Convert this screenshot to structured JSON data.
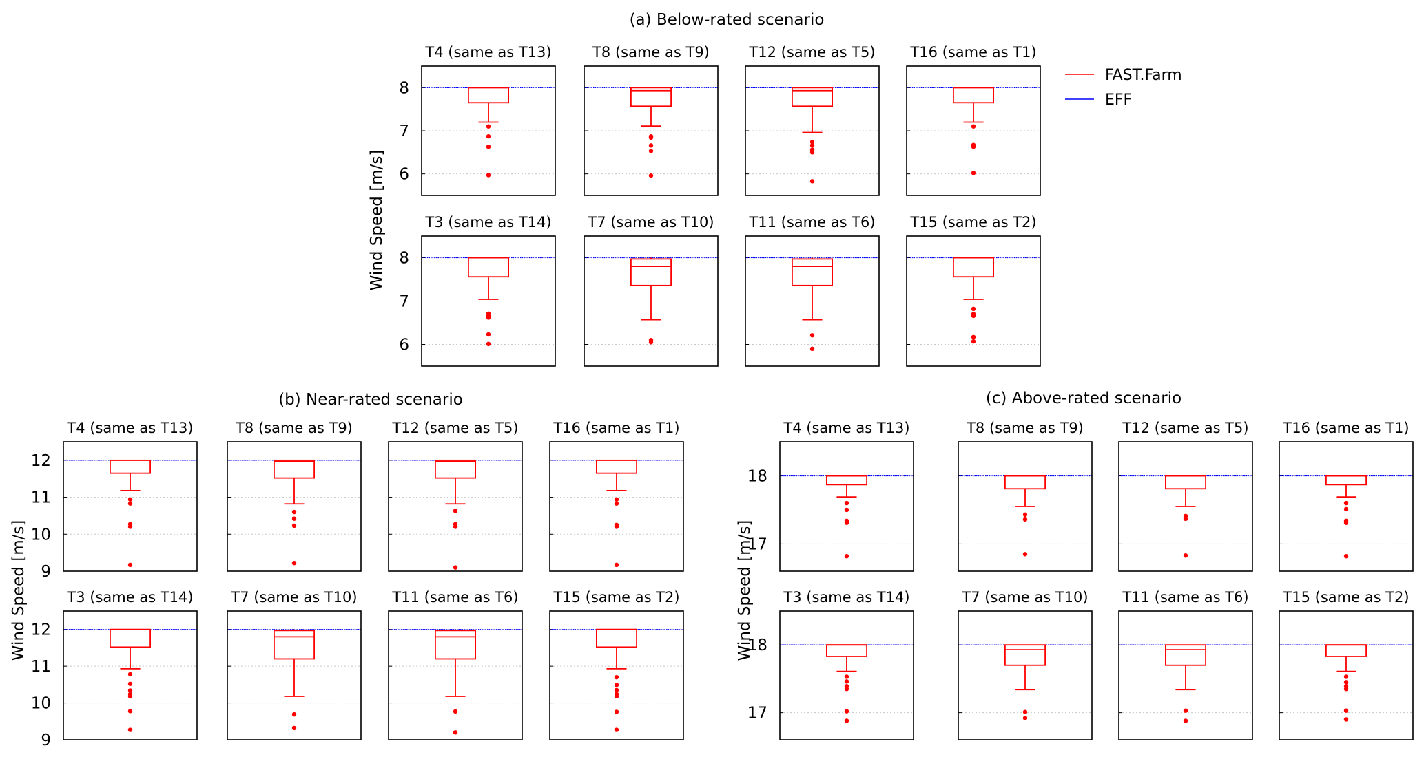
{
  "legend": {
    "items": [
      {
        "label": "FAST.Farm",
        "color": "#ff0000"
      },
      {
        "label": "EFF",
        "color": "#0000ff"
      }
    ]
  },
  "chart_data": [
    {
      "type": "box",
      "title": "(a) Below-rated scenario",
      "ylabel": "Wind Speed [m/s]",
      "ylim": [
        5.5,
        8.5
      ],
      "yticks": [
        6,
        7,
        8
      ],
      "grid": "horizontal dotted",
      "eff_value": 8,
      "panels": [
        {
          "title": "T4 (same as T13)",
          "q1": 7.65,
          "median": 8.0,
          "q3": 8.0,
          "whisker_low": 7.2,
          "whisker_high": 8.0,
          "outliers": [
            7.1,
            6.87,
            6.63,
            5.97
          ]
        },
        {
          "title": "T8 (same as T9)",
          "q1": 7.57,
          "median": 7.93,
          "q3": 8.0,
          "whisker_low": 7.11,
          "whisker_high": 8.0,
          "outliers": [
            6.87,
            6.84,
            6.66,
            6.53,
            5.96
          ]
        },
        {
          "title": "T12 (same as T5)",
          "q1": 7.57,
          "median": 7.93,
          "q3": 8.0,
          "whisker_low": 6.96,
          "whisker_high": 8.0,
          "outliers": [
            6.74,
            6.66,
            6.56,
            6.5,
            5.83
          ]
        },
        {
          "title": "T16 (same as T1)",
          "q1": 7.65,
          "median": 8.0,
          "q3": 8.0,
          "whisker_low": 7.2,
          "whisker_high": 8.0,
          "outliers": [
            7.1,
            6.67,
            6.63,
            6.02
          ]
        },
        {
          "title": "T3 (same as T14)",
          "q1": 7.56,
          "median": 8.0,
          "q3": 8.0,
          "whisker_low": 7.04,
          "whisker_high": 8.0,
          "outliers": [
            6.71,
            6.66,
            6.62,
            6.23,
            6.01
          ]
        },
        {
          "title": "T7 (same as T10)",
          "q1": 7.36,
          "median": 7.8,
          "q3": 7.97,
          "whisker_low": 6.57,
          "whisker_high": 8.0,
          "outliers": [
            6.1,
            6.05
          ]
        },
        {
          "title": "T11 (same as T6)",
          "q1": 7.36,
          "median": 7.8,
          "q3": 7.97,
          "whisker_low": 6.57,
          "whisker_high": 8.0,
          "outliers": [
            6.21,
            5.9
          ]
        },
        {
          "title": "T15 (same as T2)",
          "q1": 7.56,
          "median": 8.0,
          "q3": 8.0,
          "whisker_low": 7.04,
          "whisker_high": 8.0,
          "outliers": [
            6.82,
            6.7,
            6.66,
            6.17,
            6.07
          ]
        }
      ]
    },
    {
      "type": "box",
      "title": "(b) Near-rated scenario",
      "ylabel": "Wind Speed [m/s]",
      "ylim": [
        9,
        12.5
      ],
      "yticks": [
        9,
        10,
        11,
        12
      ],
      "grid": "horizontal dotted",
      "eff_value": 12,
      "panels": [
        {
          "title": "T4 (same as T13)",
          "q1": 11.65,
          "median": 12.0,
          "q3": 12.0,
          "whisker_low": 11.18,
          "whisker_high": 12.0,
          "outliers": [
            10.94,
            10.83,
            10.27,
            10.2,
            9.17
          ]
        },
        {
          "title": "T8 (same as T9)",
          "q1": 11.52,
          "median": 11.97,
          "q3": 12.0,
          "whisker_low": 10.82,
          "whisker_high": 12.0,
          "outliers": [
            10.6,
            10.42,
            10.23,
            9.22
          ]
        },
        {
          "title": "T12 (same as T5)",
          "q1": 11.52,
          "median": 11.97,
          "q3": 12.0,
          "whisker_low": 10.82,
          "whisker_high": 12.0,
          "outliers": [
            10.63,
            10.27,
            10.2,
            9.1
          ]
        },
        {
          "title": "T16 (same as T1)",
          "q1": 11.65,
          "median": 12.0,
          "q3": 12.0,
          "whisker_low": 11.18,
          "whisker_high": 12.0,
          "outliers": [
            10.94,
            10.83,
            10.25,
            10.2,
            9.17
          ]
        },
        {
          "title": "T3 (same as T14)",
          "q1": 11.52,
          "median": 12.0,
          "q3": 12.0,
          "whisker_low": 10.93,
          "whisker_high": 12.0,
          "outliers": [
            10.78,
            10.52,
            10.34,
            10.24,
            10.18,
            9.78,
            9.27
          ]
        },
        {
          "title": "T7 (same as T10)",
          "q1": 11.2,
          "median": 11.8,
          "q3": 11.97,
          "whisker_low": 10.18,
          "whisker_high": 12.0,
          "outliers": [
            9.69,
            9.32
          ]
        },
        {
          "title": "T11 (same as T6)",
          "q1": 11.2,
          "median": 11.8,
          "q3": 11.97,
          "whisker_low": 10.18,
          "whisker_high": 12.0,
          "outliers": [
            9.77,
            9.2
          ]
        },
        {
          "title": "T15 (same as T2)",
          "q1": 11.52,
          "median": 12.0,
          "q3": 12.0,
          "whisker_low": 10.93,
          "whisker_high": 12.0,
          "outliers": [
            10.7,
            10.49,
            10.35,
            10.24,
            10.18,
            9.76,
            9.27
          ]
        }
      ]
    },
    {
      "type": "box",
      "title": "(c) Above-rated scenario",
      "ylabel": "Wind Speed [m/s]",
      "ylim": [
        16.6,
        18.5
      ],
      "yticks": [
        17,
        18
      ],
      "grid": "horizontal dotted",
      "eff_value": 18,
      "panels": [
        {
          "title": "T4 (same as T13)",
          "q1": 17.87,
          "median": 18.0,
          "q3": 18.0,
          "whisker_low": 17.69,
          "whisker_high": 18.0,
          "outliers": [
            17.6,
            17.5,
            17.34,
            17.31,
            16.82
          ]
        },
        {
          "title": "T8 (same as T9)",
          "q1": 17.81,
          "median": 18.0,
          "q3": 18.0,
          "whisker_low": 17.55,
          "whisker_high": 18.0,
          "outliers": [
            17.43,
            17.36,
            16.85
          ]
        },
        {
          "title": "T12 (same as T5)",
          "q1": 17.81,
          "median": 18.0,
          "q3": 18.0,
          "whisker_low": 17.55,
          "whisker_high": 18.0,
          "outliers": [
            17.41,
            17.37,
            16.83
          ]
        },
        {
          "title": "T16 (same as T1)",
          "q1": 17.87,
          "median": 18.0,
          "q3": 18.0,
          "whisker_low": 17.69,
          "whisker_high": 18.0,
          "outliers": [
            17.6,
            17.51,
            17.34,
            17.31,
            16.82
          ]
        },
        {
          "title": "T3 (same as T14)",
          "q1": 17.83,
          "median": 18.0,
          "q3": 18.0,
          "whisker_low": 17.61,
          "whisker_high": 18.0,
          "outliers": [
            17.53,
            17.46,
            17.39,
            17.35,
            17.02,
            16.88
          ]
        },
        {
          "title": "T7 (same as T10)",
          "q1": 17.7,
          "median": 17.93,
          "q3": 18.0,
          "whisker_low": 17.34,
          "whisker_high": 18.0,
          "outliers": [
            17.01,
            16.92
          ]
        },
        {
          "title": "T11 (same as T6)",
          "q1": 17.7,
          "median": 17.93,
          "q3": 18.0,
          "whisker_low": 17.34,
          "whisker_high": 18.0,
          "outliers": [
            17.03,
            16.88
          ]
        },
        {
          "title": "T15 (same as T2)",
          "q1": 17.83,
          "median": 18.0,
          "q3": 18.0,
          "whisker_low": 17.61,
          "whisker_high": 18.0,
          "outliers": [
            17.53,
            17.45,
            17.39,
            17.35,
            17.03,
            16.9
          ]
        }
      ]
    }
  ]
}
